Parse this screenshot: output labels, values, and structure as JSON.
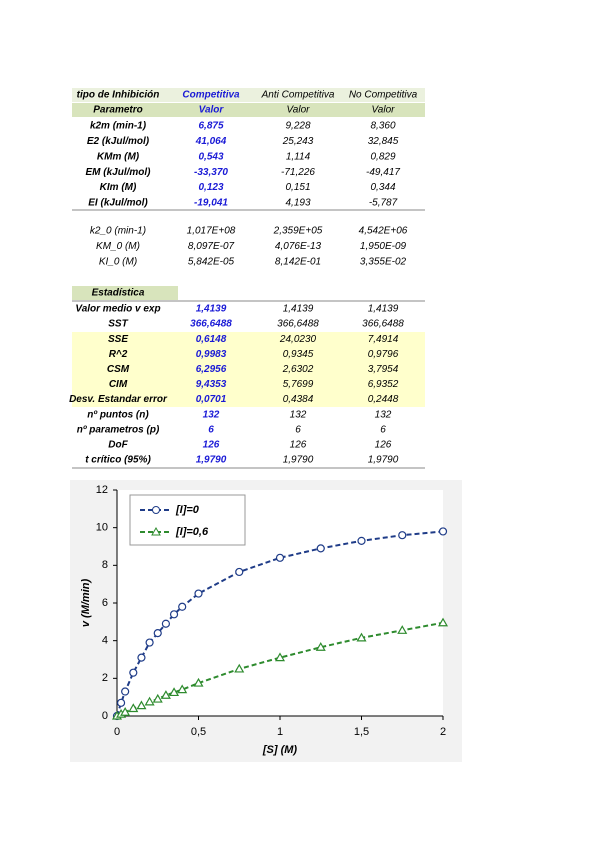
{
  "params": {
    "header": [
      "tipo de Inhibición",
      "Competitiva",
      "Anti Competitiva",
      "No Competitiva"
    ],
    "subheader": [
      "Parametro",
      "Valor",
      "Valor",
      "Valor"
    ],
    "rows": [
      [
        "k2m (min-1)",
        "6,875",
        "9,228",
        "8,360"
      ],
      [
        "E2 (kJul/mol)",
        "41,064",
        "25,243",
        "32,845"
      ],
      [
        "KMm (M)",
        "0,543",
        "1,114",
        "0,829"
      ],
      [
        "EM (kJul/mol)",
        "-33,370",
        "-71,226",
        "-49,417"
      ],
      [
        "KIm (M)",
        "0,123",
        "0,151",
        "0,344"
      ],
      [
        "EI (kJul/mol)",
        "-19,041",
        "4,193",
        "-5,787"
      ]
    ]
  },
  "initial": {
    "rows": [
      [
        "k2_0 (min-1)",
        "1,017E+08",
        "2,359E+05",
        "4,542E+06"
      ],
      [
        "KM_0 (M)",
        "8,097E-07",
        "4,076E-13",
        "1,950E-09"
      ],
      [
        "KI_0 (M)",
        "5,842E-05",
        "8,142E-01",
        "3,355E-02"
      ]
    ]
  },
  "stats": {
    "title": "Estadística",
    "rows": [
      [
        "Valor medio v exp",
        "1,4139",
        "1,4139",
        "1,4139"
      ],
      [
        "SST",
        "366,6488",
        "366,6488",
        "366,6488"
      ],
      [
        "SSE",
        "0,6148",
        "24,0230",
        "7,4914"
      ],
      [
        "R^2",
        "0,9983",
        "0,9345",
        "0,9796"
      ],
      [
        "CSM",
        "6,2956",
        "2,6302",
        "3,7954"
      ],
      [
        "CIM",
        "9,4353",
        "5,7699",
        "6,9352"
      ],
      [
        "Desv. Estandar error",
        "0,0701",
        "0,4384",
        "0,2448"
      ],
      [
        "nº puntos (n)",
        "132",
        "132",
        "132"
      ],
      [
        "nº parametros (p)",
        "6",
        "6",
        "6"
      ],
      [
        "DoF",
        "126",
        "126",
        "126"
      ],
      [
        "t crítico (95%)",
        "1,9790",
        "1,9790",
        "1,9790"
      ]
    ]
  },
  "chart_data": {
    "type": "line",
    "x_label": "[S] (M)",
    "y_label": "v (M/min)",
    "x": [
      0,
      0.025,
      0.05,
      0.1,
      0.15,
      0.2,
      0.25,
      0.3,
      0.35,
      0.4,
      0.5,
      0.75,
      1,
      1.25,
      1.5,
      1.75,
      2
    ],
    "series": [
      {
        "name": "[I]=0",
        "color": "#1f3c88",
        "marker": "circle",
        "values": [
          0,
          0.7,
          1.3,
          2.3,
          3.1,
          3.9,
          4.4,
          4.9,
          5.4,
          5.8,
          6.5,
          7.65,
          8.4,
          8.9,
          9.3,
          9.6,
          9.8
        ]
      },
      {
        "name": "[I]=0,6",
        "color": "#2e8b2e",
        "marker": "triangle",
        "values": [
          0,
          0.1,
          0.2,
          0.4,
          0.55,
          0.75,
          0.9,
          1.1,
          1.25,
          1.4,
          1.75,
          2.5,
          3.1,
          3.65,
          4.15,
          4.55,
          4.95
        ]
      }
    ],
    "xlim": [
      0,
      2
    ],
    "ylim": [
      0,
      12
    ],
    "xticks": [
      0,
      {
        "value": 0.5,
        "label": "0,5"
      },
      1,
      {
        "value": 1.5,
        "label": "1,5"
      },
      2
    ],
    "yticks": [
      0,
      2,
      4,
      6,
      8,
      10,
      12
    ]
  }
}
